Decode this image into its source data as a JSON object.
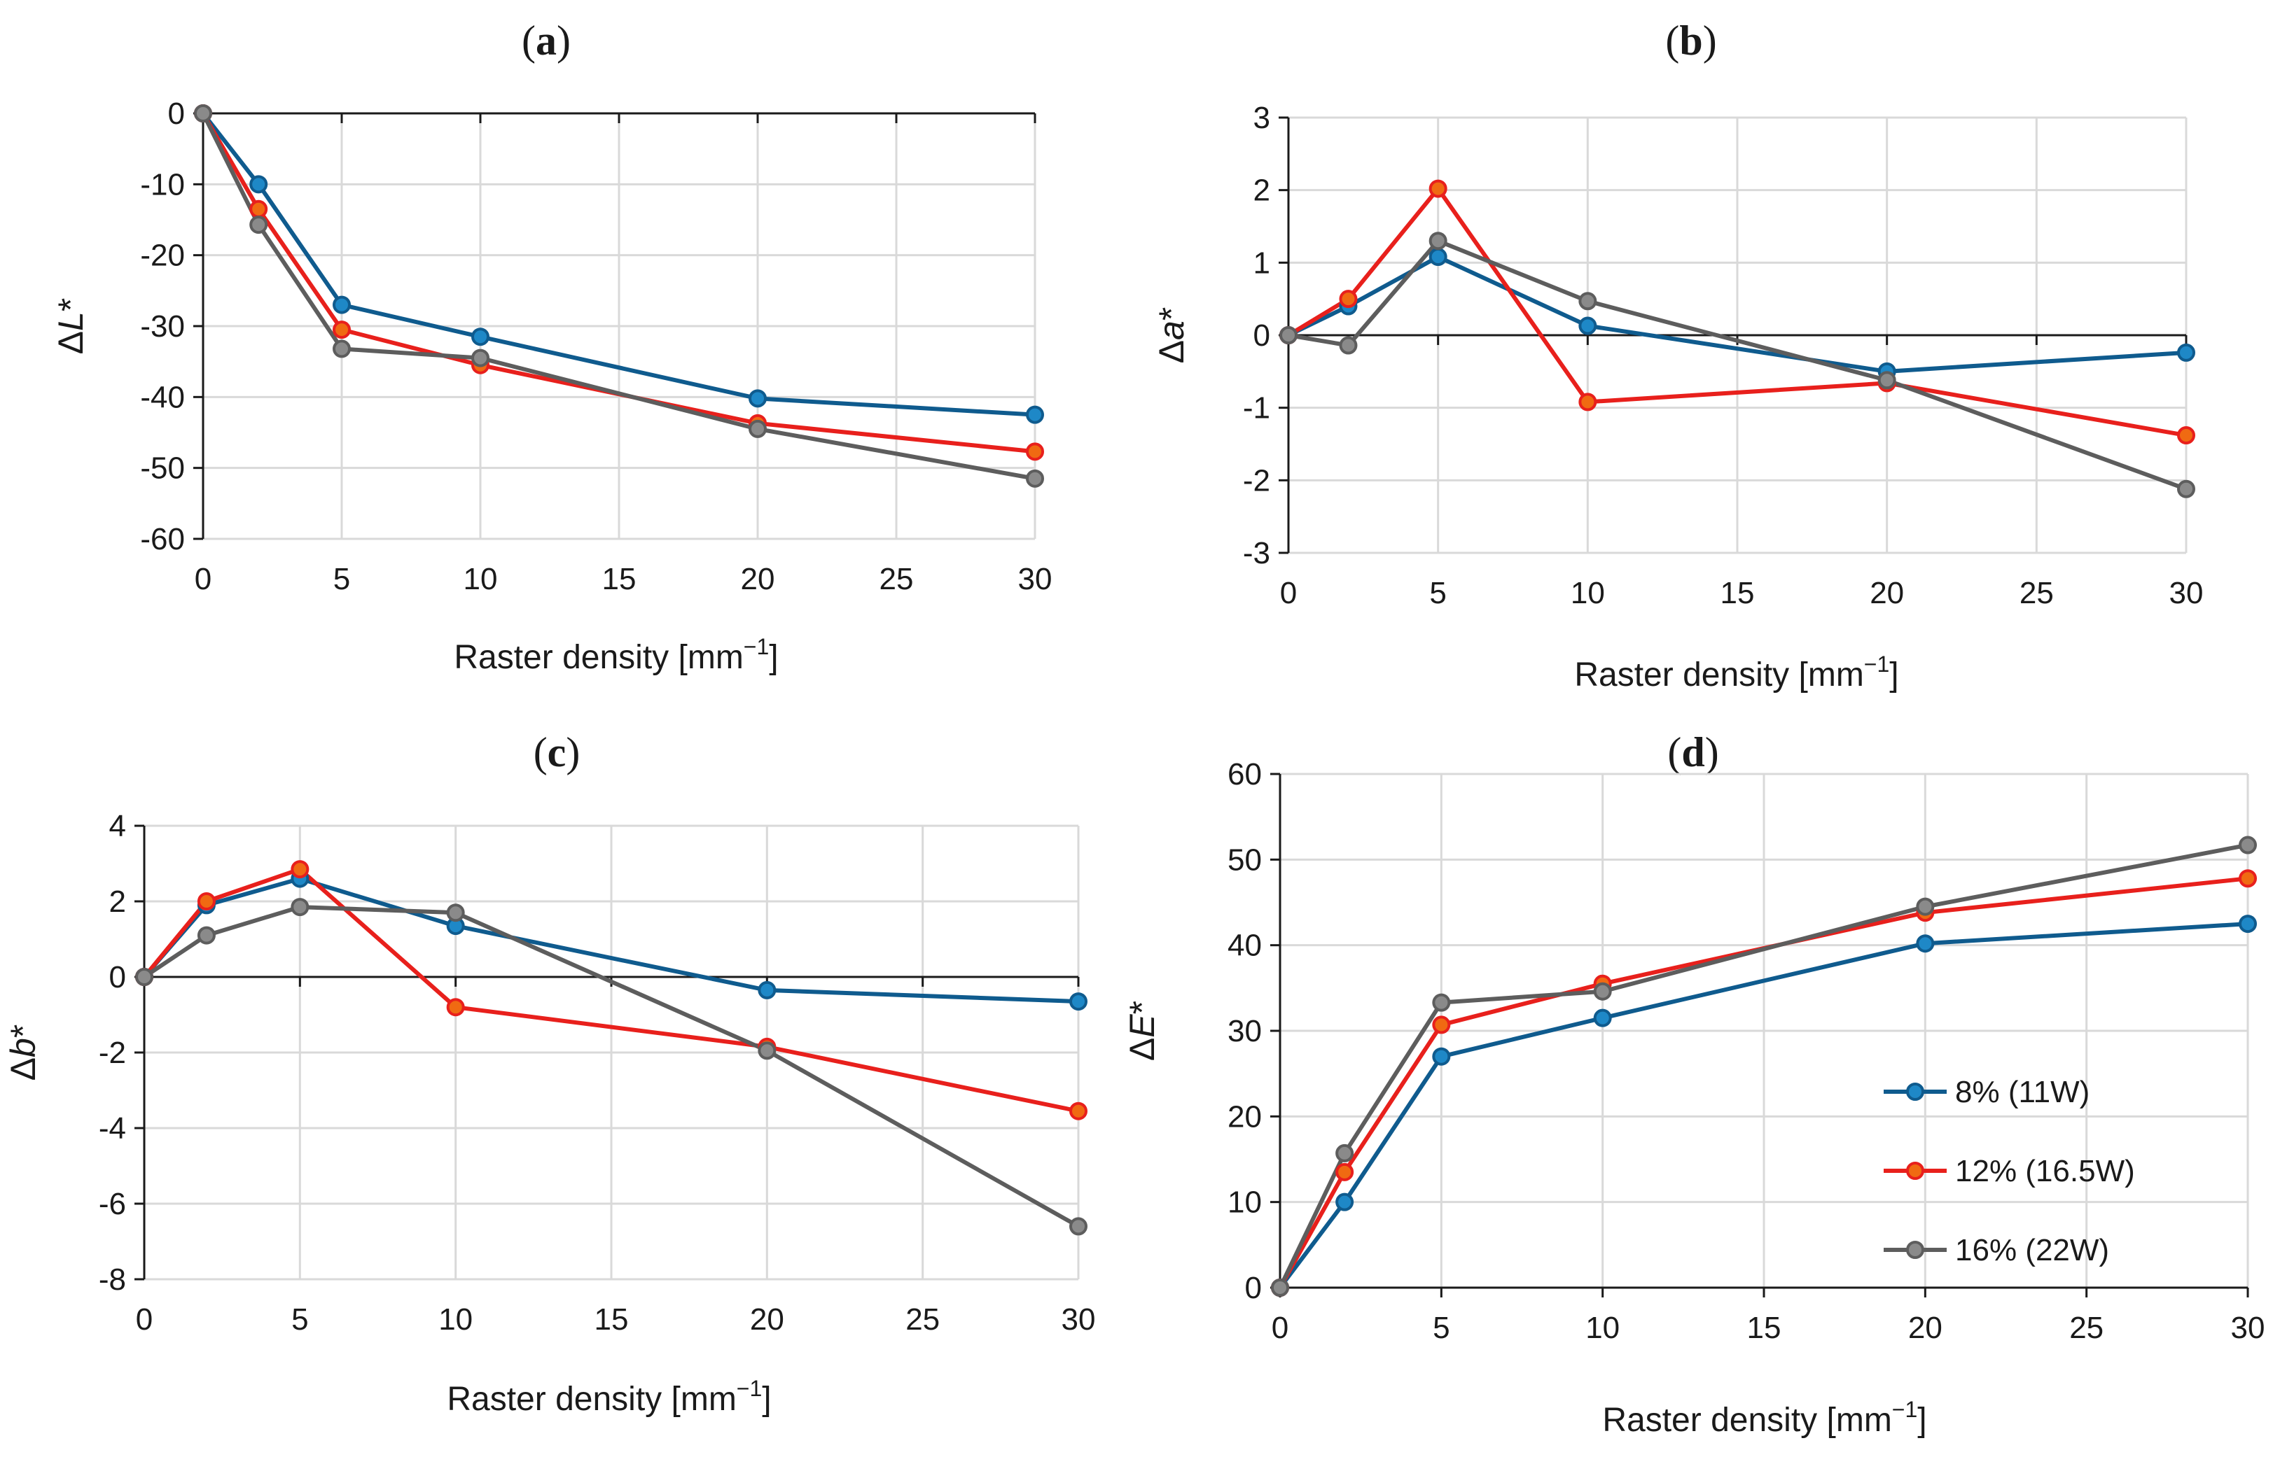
{
  "chart_data": [
    {
      "type": "line",
      "panel_label": "a",
      "title_open": "(",
      "title_close": ")",
      "ylabel_prefix": "Δ",
      "ylabel_var": "L",
      "ylabel_suffix": "*",
      "xlabel_text": "Raster density [mm",
      "xlabel_sup": "−1",
      "xlabel_close": "]",
      "x": [
        0,
        2,
        5,
        10,
        20,
        30
      ],
      "xlim": [
        0,
        30
      ],
      "ylim": [
        -60,
        0
      ],
      "xticks": [
        0,
        5,
        10,
        15,
        20,
        25,
        30
      ],
      "yticks": [
        0,
        -10,
        -20,
        -30,
        -40,
        -50,
        -60
      ],
      "xticklabels": [
        "0",
        "5",
        "10",
        "15",
        "20",
        "25",
        "30"
      ],
      "yticklabels": [
        "0",
        "-10",
        "-20",
        "-30",
        "-40",
        "-50",
        "-60"
      ],
      "series": [
        {
          "name": "8% (11W)",
          "values": [
            0,
            -10,
            -27,
            -31.5,
            -40.2,
            -42.5
          ]
        },
        {
          "name": "12% (16.5W)",
          "values": [
            0,
            -13.5,
            -30.5,
            -35.5,
            -43.7,
            -47.7
          ]
        },
        {
          "name": "16% (22W)",
          "values": [
            0,
            -15.7,
            -33.2,
            -34.5,
            -44.5,
            -51.5
          ]
        }
      ]
    },
    {
      "type": "line",
      "panel_label": "b",
      "title_open": "(",
      "title_close": ")",
      "ylabel_prefix": "Δ",
      "ylabel_var": "a",
      "ylabel_suffix": "*",
      "xlabel_text": "Raster density [mm",
      "xlabel_sup": "−1",
      "xlabel_close": "]",
      "x": [
        0,
        2,
        5,
        10,
        20,
        30
      ],
      "xlim": [
        0,
        30
      ],
      "ylim": [
        -3,
        3
      ],
      "xticks": [
        0,
        5,
        10,
        15,
        20,
        25,
        30
      ],
      "yticks": [
        3,
        2,
        1,
        0,
        -1,
        -2,
        -3
      ],
      "xticklabels": [
        "0",
        "5",
        "10",
        "15",
        "20",
        "25",
        "30"
      ],
      "yticklabels": [
        "3",
        "2",
        "1",
        "0",
        "-1",
        "-2",
        "-3"
      ],
      "series": [
        {
          "name": "8% (11W)",
          "values": [
            0,
            0.4,
            1.08,
            0.13,
            -0.5,
            -0.24
          ]
        },
        {
          "name": "12% (16.5W)",
          "values": [
            0,
            0.5,
            2.02,
            -0.92,
            -0.66,
            -1.38
          ]
        },
        {
          "name": "16% (22W)",
          "values": [
            0,
            -0.14,
            1.3,
            0.47,
            -0.62,
            -2.12
          ]
        }
      ]
    },
    {
      "type": "line",
      "panel_label": "c",
      "title_open": "(",
      "title_close": ")",
      "ylabel_prefix": "Δ",
      "ylabel_var": "b",
      "ylabel_suffix": "*",
      "xlabel_text": "Raster density [mm",
      "xlabel_sup": "−1",
      "xlabel_close": "]",
      "x": [
        0,
        2,
        5,
        10,
        20,
        30
      ],
      "xlim": [
        0,
        30
      ],
      "ylim": [
        -8,
        4
      ],
      "xticks": [
        0,
        5,
        10,
        15,
        20,
        25,
        30
      ],
      "yticks": [
        4,
        2,
        0,
        -2,
        -4,
        -6,
        -8
      ],
      "xticklabels": [
        "0",
        "5",
        "10",
        "15",
        "20",
        "25",
        "30"
      ],
      "yticklabels": [
        "4",
        "2",
        "0",
        "-2",
        "-4",
        "-6",
        "-8"
      ],
      "series": [
        {
          "name": "8% (11W)",
          "values": [
            0,
            1.9,
            2.6,
            1.35,
            -0.35,
            -0.65
          ]
        },
        {
          "name": "12% (16.5W)",
          "values": [
            0,
            2.0,
            2.85,
            -0.8,
            -1.85,
            -3.55
          ]
        },
        {
          "name": "16% (22W)",
          "values": [
            0,
            1.1,
            1.85,
            1.7,
            -1.95,
            -6.6
          ]
        }
      ]
    },
    {
      "type": "line",
      "panel_label": "d",
      "title_open": "(",
      "title_close": ")",
      "ylabel_prefix": "Δ",
      "ylabel_var": "E",
      "ylabel_suffix": "*",
      "xlabel_text": "Raster density [mm",
      "xlabel_sup": "−1",
      "xlabel_close": "]",
      "x": [
        0,
        2,
        5,
        10,
        20,
        30
      ],
      "xlim": [
        0,
        30
      ],
      "ylim": [
        0,
        60
      ],
      "xticks": [
        0,
        5,
        10,
        15,
        20,
        25,
        30
      ],
      "yticks": [
        60,
        50,
        40,
        30,
        20,
        10,
        0
      ],
      "xticklabels": [
        "0",
        "5",
        "10",
        "15",
        "20",
        "25",
        "30"
      ],
      "yticklabels": [
        "60",
        "50",
        "40",
        "30",
        "20",
        "10",
        "0"
      ],
      "legend_position": "right",
      "series": [
        {
          "name": "8% (11W)",
          "values": [
            0,
            10,
            27,
            31.5,
            40.2,
            42.5
          ]
        },
        {
          "name": "12% (16.5W)",
          "values": [
            0,
            13.5,
            30.7,
            35.5,
            43.8,
            47.8
          ]
        },
        {
          "name": "16% (22W)",
          "values": [
            0,
            15.7,
            33.3,
            34.6,
            44.5,
            51.7
          ]
        }
      ]
    }
  ],
  "colors": {
    "series": [
      "#0f5b8e",
      "#e8201c",
      "#5d5d5d"
    ],
    "marker_fill": [
      "#1e88c7",
      "#f06a12",
      "#8a8a8a"
    ],
    "grid": "#d9d9d9",
    "axis": "#1a1a1a"
  }
}
